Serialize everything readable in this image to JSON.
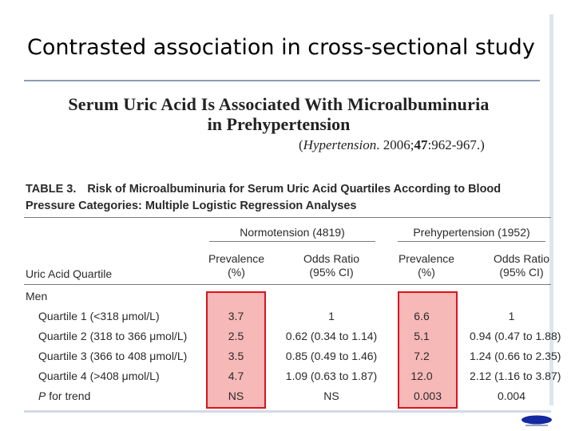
{
  "slide": {
    "title": "Contrasted association in cross-sectional study"
  },
  "paper": {
    "title_line1": "Serum Uric Acid Is Associated With Microalbuminuria",
    "title_line2": "in Prehypertension",
    "citation_open": "(",
    "citation_journal": "Hypertension",
    "citation_year": ". 2006;",
    "citation_volume": "47",
    "citation_pages": ":962-967.)"
  },
  "table": {
    "number": "TABLE 3.",
    "caption_rest": "Risk of Microalbuminuria for Serum Uric Acid Quartiles According to Blood",
    "caption_line2": "Pressure Categories: Multiple Logistic Regression Analyses",
    "groups": [
      {
        "label": "Normotension (4819)"
      },
      {
        "label": "Prehypertension (1952)"
      }
    ],
    "col_headers": {
      "row_label": "Uric Acid Quartile",
      "prevalence_line1": "Prevalence",
      "prevalence_line2": "(%)",
      "odds_line1": "Odds Ratio",
      "odds_line2": "(95% CI)"
    },
    "section": "Men",
    "rows": [
      {
        "label": "Quartile 1 (<318 μmol/L)",
        "n_prev": "3.7",
        "n_or": "1",
        "p_prev": "6.6",
        "p_or": "1"
      },
      {
        "label": "Quartile 2 (318 to 366 μmol/L)",
        "n_prev": "2.5",
        "n_or": "0.62 (0.34 to 1.14)",
        "p_prev": "5.1",
        "p_or": "0.94 (0.47 to 1.88)"
      },
      {
        "label": "Quartile 3 (366 to 408 μmol/L)",
        "n_prev": "3.5",
        "n_or": "0.85 (0.49 to 1.46)",
        "p_prev": "7.2",
        "p_or": "1.24 (0.66 to 2.35)"
      },
      {
        "label": "Quartile 4 (>408 μmol/L)",
        "n_prev": "4.7",
        "n_or": "1.09 (0.63 to 1.87)",
        "p_prev": "12.0",
        "p_or": "2.12 (1.16 to 3.87)"
      }
    ],
    "trend": {
      "label_italic": "P",
      "label_rest": " for trend",
      "n_prev": "NS",
      "n_or": "NS",
      "p_prev": "0.003",
      "p_or": "0.004"
    }
  },
  "logo": {
    "text": "SAMSUNG",
    "color": "#1428a0"
  },
  "colors": {
    "highlight_fill": "#f4a0a0",
    "highlight_border": "#d8141b",
    "frame": "#8e9bb5"
  }
}
